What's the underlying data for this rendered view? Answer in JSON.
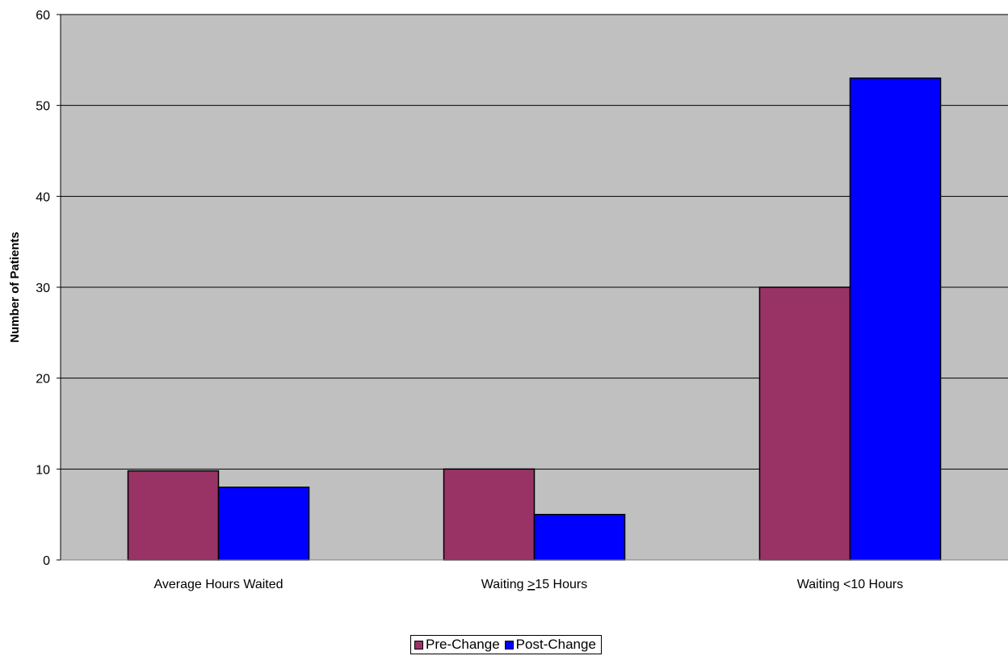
{
  "chart_data": {
    "type": "bar",
    "title": "",
    "xlabel": "",
    "ylabel": "Number of Patients",
    "ylim": [
      0,
      60
    ],
    "yticks": [
      0,
      10,
      20,
      30,
      40,
      50,
      60
    ],
    "grid": true,
    "legend_position": "bottom",
    "plot_background": "#c0c0c0",
    "categories": [
      {
        "prefix": "Average Hours Waited",
        "underlined": "",
        "suffix": ""
      },
      {
        "prefix": "Waiting ",
        "underlined": ">",
        "suffix": "15 Hours"
      },
      {
        "prefix": "Waiting <10 Hours",
        "underlined": "",
        "suffix": ""
      }
    ],
    "series": [
      {
        "name": "Pre-Change",
        "color": "#993366",
        "values": [
          9.8,
          10,
          30
        ]
      },
      {
        "name": "Post-Change",
        "color": "#0000ff",
        "values": [
          8,
          5,
          53
        ]
      }
    ]
  }
}
